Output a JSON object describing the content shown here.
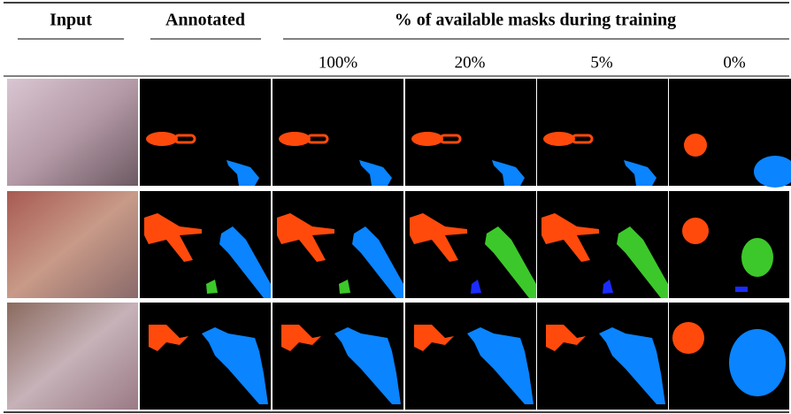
{
  "header": {
    "columns": [
      "Input",
      "Annotated"
    ],
    "group_title": "% of available masks during training",
    "group_columns": [
      "100%",
      "20%",
      "5%",
      "0%"
    ]
  }
}
